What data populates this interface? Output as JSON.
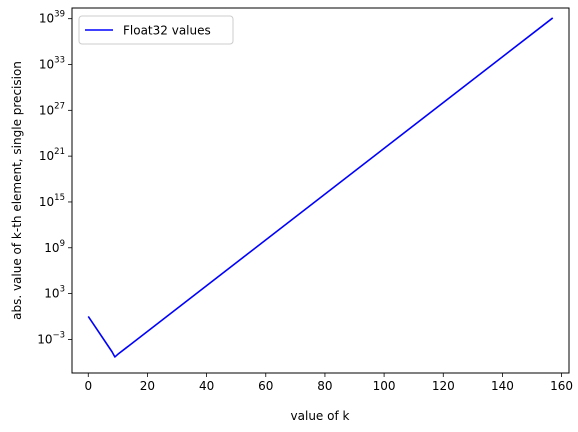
{
  "chart_data": {
    "type": "line",
    "xlabel": "value of k",
    "ylabel": "abs. value of k-th element, single precision",
    "xlim": [
      -5.5,
      162.5
    ],
    "ylim_log10": [
      -7.4,
      40.4
    ],
    "y_scale": "log",
    "grid": false,
    "legend": {
      "position": "top-left"
    },
    "x_ticks": [
      {
        "value": 0,
        "label": "0"
      },
      {
        "value": 20,
        "label": "20"
      },
      {
        "value": 40,
        "label": "40"
      },
      {
        "value": 60,
        "label": "60"
      },
      {
        "value": 80,
        "label": "80"
      },
      {
        "value": 100,
        "label": "100"
      },
      {
        "value": 120,
        "label": "120"
      },
      {
        "value": 140,
        "label": "140"
      },
      {
        "value": 160,
        "label": "160"
      }
    ],
    "y_ticks": [
      {
        "exponent": -3,
        "base": "10",
        "exp": "−3"
      },
      {
        "exponent": 3,
        "base": "10",
        "exp": "3"
      },
      {
        "exponent": 9,
        "base": "10",
        "exp": "9"
      },
      {
        "exponent": 15,
        "base": "10",
        "exp": "15"
      },
      {
        "exponent": 21,
        "base": "10",
        "exp": "21"
      },
      {
        "exponent": 27,
        "base": "10",
        "exp": "27"
      },
      {
        "exponent": 33,
        "base": "10",
        "exp": "33"
      },
      {
        "exponent": 39,
        "base": "10",
        "exp": "39"
      }
    ],
    "series": [
      {
        "name": "Float32 values",
        "color": "#0000ff",
        "points_k_log10y": [
          [
            0,
            0.0
          ],
          [
            8,
            -4.6
          ],
          [
            9,
            -5.3
          ],
          [
            10,
            -4.95
          ],
          [
            157,
            39.1
          ]
        ]
      }
    ]
  }
}
